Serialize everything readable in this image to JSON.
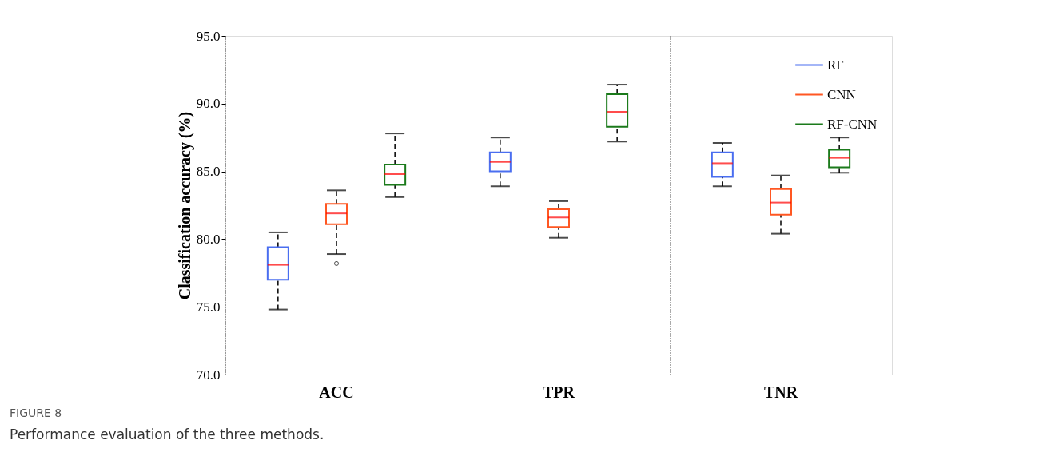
{
  "chart_data": {
    "type": "box",
    "ylabel": "Classification accuracy (%)",
    "categories": [
      "ACC",
      "TPR",
      "TNR"
    ],
    "ylim": [
      70,
      95
    ],
    "yticks": [
      {
        "value": 70,
        "label": "70.0"
      },
      {
        "value": 75,
        "label": "75.0"
      },
      {
        "value": 80,
        "label": "80.0"
      },
      {
        "value": 85,
        "label": "85.0"
      },
      {
        "value": 90,
        "label": "90.0"
      },
      {
        "value": 95,
        "label": "95.0"
      }
    ],
    "grid": "x",
    "legend": "top right",
    "series": [
      {
        "name": "RF",
        "color": "#4a6ef0",
        "boxes": [
          {
            "low": 74.8,
            "q1": 77.0,
            "median": 78.1,
            "q3": 79.4,
            "high": 80.5
          },
          {
            "low": 83.9,
            "q1": 85.0,
            "median": 85.7,
            "q3": 86.4,
            "high": 87.5
          },
          {
            "low": 83.9,
            "q1": 84.6,
            "median": 85.6,
            "q3": 86.4,
            "high": 87.1
          }
        ]
      },
      {
        "name": "CNN",
        "color": "#ff5722",
        "boxes": [
          {
            "low": 78.9,
            "q1": 81.1,
            "median": 81.9,
            "q3": 82.6,
            "high": 83.6,
            "outliers": [
              78.2
            ]
          },
          {
            "low": 80.1,
            "q1": 80.9,
            "median": 81.6,
            "q3": 82.2,
            "high": 82.8
          },
          {
            "low": 80.4,
            "q1": 81.8,
            "median": 82.7,
            "q3": 83.7,
            "high": 84.7
          }
        ]
      },
      {
        "name": "RF-CNN",
        "color": "#1b7a1b",
        "boxes": [
          {
            "low": 83.1,
            "q1": 84.0,
            "median": 84.8,
            "q3": 85.5,
            "high": 87.8
          },
          {
            "low": 87.2,
            "q1": 88.3,
            "median": 89.4,
            "q3": 90.7,
            "high": 91.4
          },
          {
            "low": 84.9,
            "q1": 85.3,
            "median": 86.0,
            "q3": 86.6,
            "high": 87.5
          }
        ]
      }
    ],
    "annotations": [
      "FIGURE 8",
      "Performance evaluation of the three methods."
    ]
  }
}
